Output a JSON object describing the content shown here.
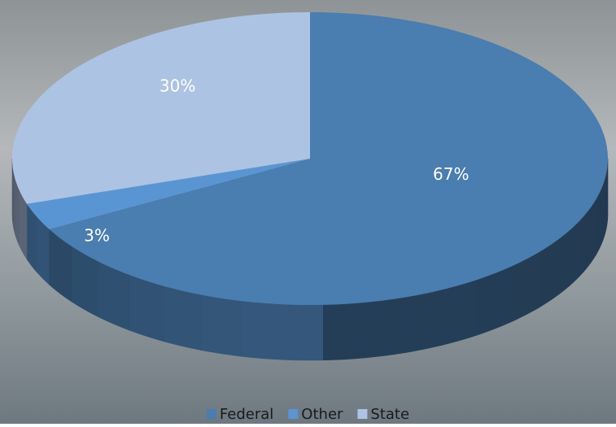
{
  "chart_data": {
    "type": "pie",
    "categories": [
      "Federal",
      "Other",
      "State"
    ],
    "values": [
      67,
      3,
      30
    ],
    "value_labels": [
      "67%",
      "3%",
      "30%"
    ],
    "colors": [
      "#4a7db0",
      "#5a95d3",
      "#adc3e3"
    ],
    "legend": "bottom"
  }
}
